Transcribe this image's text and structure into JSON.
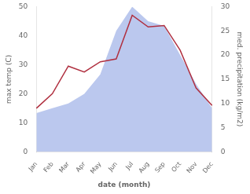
{
  "chart_data": {
    "type": "line",
    "xlabel": "date (month)",
    "ylabel": "max temp (C)",
    "y2label": "med. precipitation (kg/m2)",
    "categories": [
      "Jan",
      "Feb",
      "Mar",
      "Apr",
      "May",
      "Jun",
      "Jul",
      "Aug",
      "Sep",
      "Oct",
      "Nov",
      "Dec"
    ],
    "series": [
      {
        "type": "area",
        "axis": "y2",
        "color": "#bbc8ee",
        "values": [
          8.0,
          9.0,
          10.0,
          12.0,
          16.0,
          25.0,
          30.0,
          27.0,
          26.0,
          20.0,
          14.0,
          9.0
        ]
      },
      {
        "type": "line",
        "color": "#b03040",
        "values": [
          15.0,
          20.0,
          29.5,
          27.5,
          31.0,
          32.0,
          47.0,
          43.0,
          43.5,
          35.0,
          22.0,
          16.0
        ]
      }
    ],
    "ylim": [
      0,
      50
    ],
    "yticks": [
      0,
      10,
      20,
      30,
      40,
      50
    ],
    "y2lim": [
      0,
      30
    ],
    "y2ticks": [
      0,
      5,
      10,
      15,
      20,
      25,
      30
    ],
    "grid": false
  }
}
